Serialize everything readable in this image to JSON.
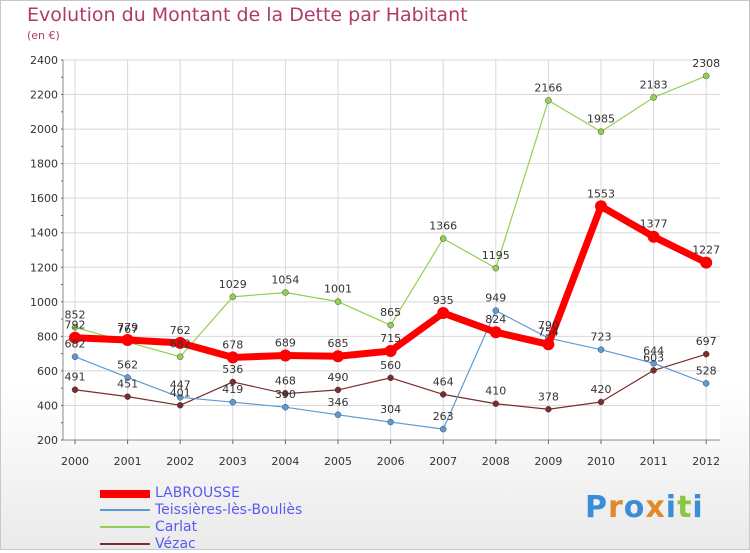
{
  "chart_data": {
    "type": "line",
    "title": "Evolution du Montant de la Dette par Habitant",
    "subtitle": "(en €)",
    "x": [
      "2000",
      "2001",
      "2002",
      "2003",
      "2004",
      "2005",
      "2006",
      "2007",
      "2008",
      "2009",
      "2010",
      "2011",
      "2012"
    ],
    "ylim": [
      200,
      2400
    ],
    "yticks": [
      200,
      400,
      600,
      800,
      1000,
      1200,
      1400,
      1600,
      1800,
      2000,
      2200,
      2400
    ],
    "grid": true,
    "legend_position": "bottom-left",
    "series": [
      {
        "name": "LABROUSSE",
        "color": "#ff0000",
        "width": 7,
        "marker": 6,
        "values": [
          792,
          779,
          762,
          678,
          689,
          685,
          715,
          935,
          824,
          754,
          1553,
          1377,
          1227
        ]
      },
      {
        "name": "Teissières-lès-Bouliès",
        "color": "#5b9bd5",
        "width": 1.2,
        "marker": 3,
        "values": [
          682,
          562,
          447,
          419,
          390,
          346,
          304,
          263,
          949,
          790,
          723,
          644,
          528
        ]
      },
      {
        "name": "Carlat",
        "color": "#92d050",
        "width": 1.2,
        "marker": 3,
        "values": [
          852,
          767,
          682,
          1029,
          1054,
          1001,
          865,
          1366,
          1195,
          2166,
          1985,
          2183,
          2308
        ]
      },
      {
        "name": "Vézac",
        "color": "#7b2c2c",
        "width": 1.2,
        "marker": 3,
        "values": [
          491,
          451,
          401,
          536,
          468,
          490,
          560,
          464,
          410,
          378,
          420,
          603,
          697
        ]
      }
    ],
    "data_labels": [
      [
        "792",
        "779",
        "762",
        "678",
        "689",
        "685",
        "715",
        "935",
        "824",
        "754",
        "1553",
        "1377",
        "1227"
      ],
      [
        "682",
        "562",
        "447",
        "419",
        "390",
        "346",
        "304",
        "263",
        "949",
        "790",
        "723",
        "644",
        "528"
      ],
      [
        "852",
        "767",
        "682",
        "1029",
        "1054",
        "1001",
        "865",
        "1366",
        "1195",
        "2166",
        "1985",
        "2183",
        "2308"
      ],
      [
        "491",
        "451",
        "401",
        "536",
        "468",
        "490",
        "560",
        "464",
        "410",
        "378",
        "420",
        "603",
        "697"
      ]
    ]
  },
  "logo_letters": [
    "P",
    "r",
    "o",
    "x",
    "i",
    "t",
    "i"
  ]
}
